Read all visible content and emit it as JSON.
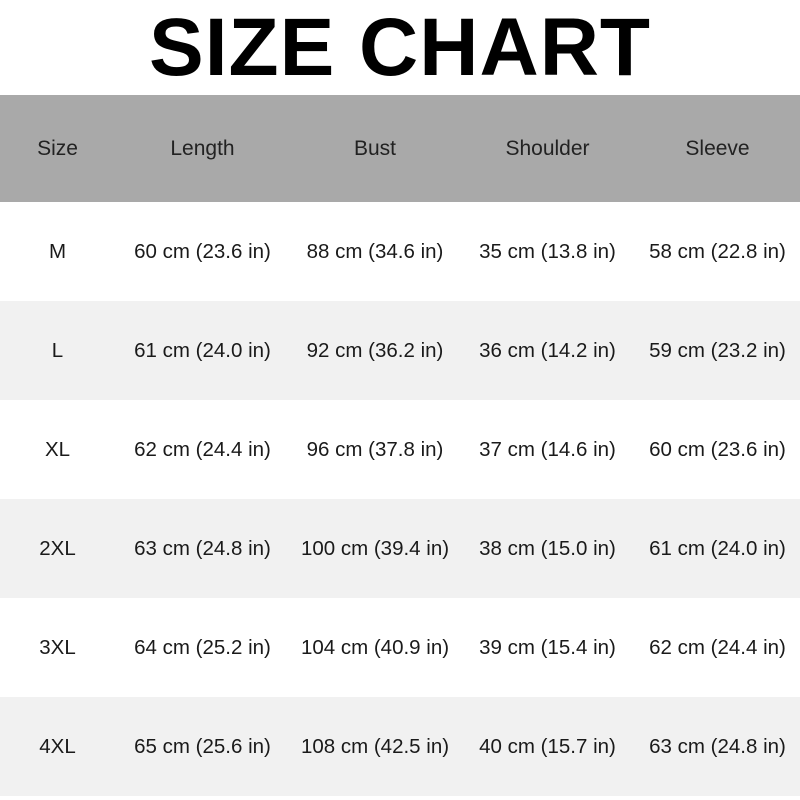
{
  "title": "SIZE CHART",
  "headers": [
    "Size",
    "Length",
    "Bust",
    "Shoulder",
    "Sleeve"
  ],
  "rows": [
    [
      "M",
      "60 cm (23.6 in)",
      "88 cm (34.6 in)",
      "35 cm (13.8 in)",
      "58 cm (22.8 in)"
    ],
    [
      "L",
      "61 cm (24.0 in)",
      "92 cm (36.2 in)",
      "36 cm (14.2 in)",
      "59 cm (23.2 in)"
    ],
    [
      "XL",
      "62 cm (24.4 in)",
      "96 cm (37.8 in)",
      "37 cm (14.6 in)",
      "60 cm (23.6 in)"
    ],
    [
      "2XL",
      "63 cm (24.8 in)",
      "100 cm (39.4 in)",
      "38 cm (15.0 in)",
      "61 cm (24.0 in)"
    ],
    [
      "3XL",
      "64 cm (25.2 in)",
      "104 cm (40.9 in)",
      "39 cm (15.4 in)",
      "62 cm (24.4 in)"
    ],
    [
      "4XL",
      "65 cm (25.6 in)",
      "108 cm (42.5 in)",
      "40 cm (15.7 in)",
      "63 cm (24.8 in)"
    ]
  ],
  "colors": {
    "header_bg": "#a9a9a9",
    "stripe_bg": "#f1f1f1"
  }
}
